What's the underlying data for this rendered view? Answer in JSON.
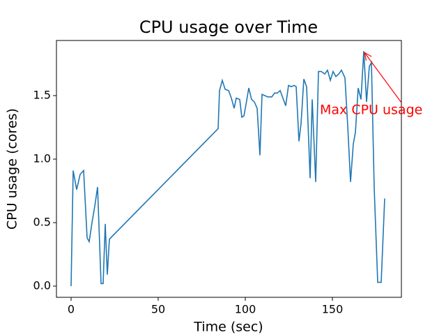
{
  "chart_data": {
    "type": "line",
    "title": "CPU usage over Time",
    "x_label": "Time (sec)",
    "y_label": "CPU usage (cores)",
    "annotation": "Max CPU usage",
    "annotation_color": "#ff0000",
    "xlim": [
      -8.4,
      189.6
    ],
    "ylim": [
      -0.088,
      1.934
    ],
    "xticks": [
      0,
      50,
      100,
      150
    ],
    "yticks": [
      {
        "value": 0,
        "label": "0.0"
      },
      {
        "value": 0.5,
        "label": "0.5"
      },
      {
        "value": 1,
        "label": "1.0"
      },
      {
        "value": 1.5,
        "label": "1.5"
      }
    ],
    "series": [
      {
        "name": "CPU usage",
        "color": "#1f77b4",
        "x": [
          0,
          1.2,
          3.2,
          5.2,
          7.2,
          9.2,
          10.4,
          12,
          13.6,
          15.2,
          17.2,
          18.4,
          19.6,
          20.8,
          22,
          84.4,
          85.2,
          86.8,
          88.4,
          90.4,
          92,
          93.6,
          94.8,
          96.8,
          98,
          99.2,
          100.4,
          102,
          103.6,
          105.2,
          106.8,
          108.4,
          109.6,
          111.2,
          112.8,
          115.2,
          116.8,
          118.4,
          120,
          121.6,
          123.2,
          124.8,
          126.4,
          128,
          129.2,
          130.8,
          132,
          133.6,
          135.2,
          137.2,
          138.4,
          140.4,
          142,
          143.6,
          145.6,
          147.2,
          148.8,
          150.4,
          152,
          153.6,
          155.2,
          157.2,
          158.8,
          160.4,
          162,
          163.2,
          164.8,
          166.4,
          168,
          169.6,
          171.2,
          172.4,
          174,
          176,
          178,
          180
        ],
        "values": [
          0,
          0.91,
          0.76,
          0.88,
          0.91,
          0.38,
          0.35,
          0.5,
          0.63,
          0.78,
          0.02,
          0.02,
          0.49,
          0.09,
          0.37,
          1.24,
          1.54,
          1.62,
          1.55,
          1.54,
          1.48,
          1.4,
          1.48,
          1.47,
          1.33,
          1.34,
          1.43,
          1.56,
          1.47,
          1.45,
          1.4,
          1.03,
          1.51,
          1.5,
          1.49,
          1.49,
          1.52,
          1.52,
          1.54,
          1.48,
          1.42,
          1.58,
          1.57,
          1.58,
          1.57,
          1.14,
          1.28,
          1.63,
          1.57,
          0.85,
          1.47,
          0.82,
          1.69,
          1.69,
          1.67,
          1.7,
          1.62,
          1.69,
          1.65,
          1.67,
          1.7,
          1.64,
          1.26,
          0.82,
          1.12,
          1.21,
          1.56,
          1.47,
          1.85,
          1.45,
          1.73,
          1.76,
          0.77,
          0.03,
          0.03,
          0.69
        ]
      }
    ]
  }
}
